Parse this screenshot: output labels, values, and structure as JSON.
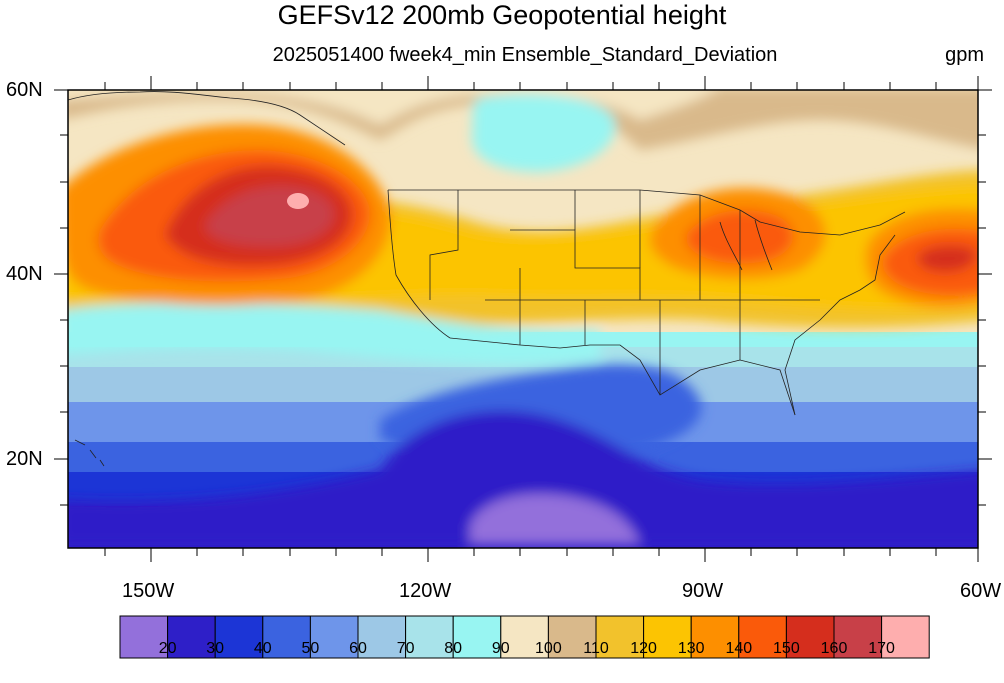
{
  "title": "GEFSv12 200mb Geopotential height",
  "subtitle": "2025051400 fweek4_min Ensemble_Standard_Deviation",
  "units": "gpm",
  "map": {
    "lat_labels": [
      "60N",
      "40N",
      "20N"
    ],
    "lon_labels": [
      "150W",
      "120W",
      "90W",
      "60W"
    ],
    "extent": {
      "lon": [
        -159,
        -60
      ],
      "lat": [
        10,
        60
      ]
    }
  },
  "colorbar": {
    "labels": [
      "20",
      "30",
      "40",
      "50",
      "60",
      "70",
      "80",
      "90",
      "100",
      "110",
      "120",
      "130",
      "140",
      "150",
      "160",
      "170"
    ],
    "colors": [
      "#9370db",
      "#2e1fc8",
      "#1c35d6",
      "#3b63e0",
      "#6e95ea",
      "#9dc8e6",
      "#a8e3ea",
      "#98f5f2",
      "#f5e6c3",
      "#d9b98b",
      "#f2c22c",
      "#fcc402",
      "#fd8f00",
      "#fa5a0a",
      "#d52e1d",
      "#c84048",
      "#feaeae"
    ]
  }
}
